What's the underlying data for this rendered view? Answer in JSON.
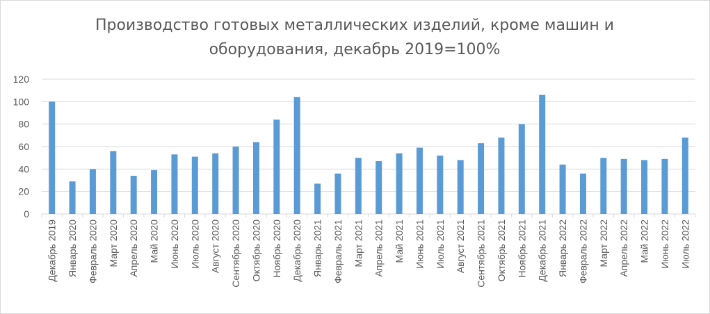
{
  "chart_data": {
    "type": "bar",
    "title_line1": "Производство готовых металлических изделий, кроме машин и",
    "title_line2": "оборудования, декабрь 2019=100%",
    "xlabel": "",
    "ylabel": "",
    "ylim": [
      0,
      120
    ],
    "yticks": [
      "0",
      "20",
      "40",
      "60",
      "80",
      "100",
      "120"
    ],
    "grid": true,
    "legend": "none",
    "bar_color": "#5b9bd5",
    "categories": [
      "Декабрь 2019",
      "Январь 2020",
      "Февраль 2020",
      "Март 2020",
      "Апрель 2020",
      "Май 2020",
      "Июнь 2020",
      "Июль 2020",
      "Август 2020",
      "Сентябрь 2020",
      "Октябрь 2020",
      "Ноябрь 2020",
      "Декабрь 2020",
      "Январь 2021",
      "Февраль 2021",
      "Март 2021",
      "Апрель 2021",
      "Май 2021",
      "Июнь 2021",
      "Июль 2021",
      "Август 2021",
      "Сентябрь 2021",
      "Октябрь 2021",
      "Ноябрь 2021",
      "Декабрь 2021",
      "Январь 2022",
      "Февраль 2022",
      "Март 2022",
      "Апрель 2022",
      "Май 2022",
      "Июнь 2022",
      "Июль 2022"
    ],
    "values": [
      100,
      29,
      40,
      56,
      34,
      39,
      53,
      51,
      54,
      60,
      64,
      84,
      104,
      27,
      36,
      50,
      47,
      54,
      59,
      52,
      48,
      63,
      68,
      80,
      106,
      44,
      36,
      50,
      49,
      48,
      49,
      68
    ]
  }
}
